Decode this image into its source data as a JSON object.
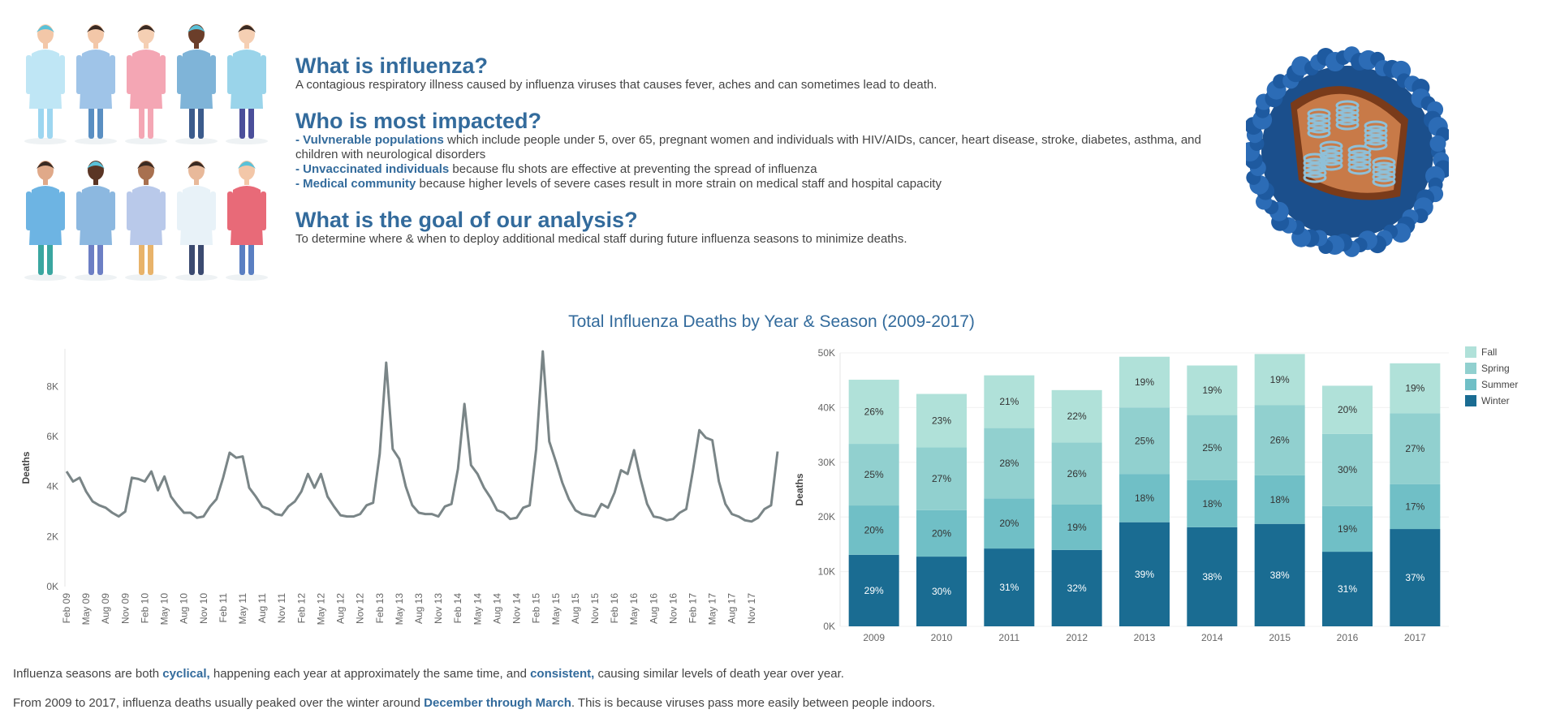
{
  "intro": {
    "q1_title": "What is influenza?",
    "q1_text": "A contagious respiratory illness caused by influenza viruses that causes fever, aches and can sometimes lead to death.",
    "q2_title": "Who is most impacted?",
    "bullets": [
      {
        "prefix": "- ",
        "highlight": "Vulvnerable populations",
        "text": " which include people under 5, over 65, pregnant women and individuals with HIV/AIDs, cancer, heart disease, stroke, diabetes, asthma, and children with neurological disorders"
      },
      {
        "prefix": "- ",
        "highlight": "Unvaccinated individuals",
        "text": " because flu shots are effective at preventing the spread of influenza"
      },
      {
        "prefix": "- ",
        "highlight": "Medical community",
        "text": " because higher levels of severe cases result in more strain on medical staff and hospital capacity"
      }
    ],
    "q3_title": "What is the goal of our analysis?",
    "q3_text": "To determine where & when to deploy additional medical staff during future influenza seasons to minimize deaths."
  },
  "dashboard_title": "Total Influenza Deaths by Year & Season (2009-2017)",
  "colors": {
    "title_blue": "#336b9c",
    "line": "#7a8587",
    "fall": "#b0e1d9",
    "spring": "#91d0cf",
    "summer": "#70bfc6",
    "winter": "#1a6c92"
  },
  "chart_data": [
    {
      "type": "line",
      "title": "",
      "xlabel": "",
      "ylabel": "Deaths",
      "ylim": [
        0,
        9500
      ],
      "ytick_labels": [
        "0K",
        "2K",
        "4K",
        "6K",
        "8K"
      ],
      "ytick_values": [
        0,
        2000,
        4000,
        6000,
        8000
      ],
      "xtick_labels": [
        "Feb 09",
        "May 09",
        "Aug 09",
        "Nov 09",
        "Feb 10",
        "May 10",
        "Aug 10",
        "Nov 10",
        "Feb 11",
        "May 11",
        "Aug 11",
        "Nov 11",
        "Feb 12",
        "May 12",
        "Aug 12",
        "Nov 12",
        "Feb 13",
        "May 13",
        "Aug 13",
        "Nov 13",
        "Feb 14",
        "May 14",
        "Aug 14",
        "Nov 14",
        "Feb 15",
        "May 15",
        "Aug 15",
        "Nov 15",
        "Feb 16",
        "May 16",
        "Aug 16",
        "Nov 16",
        "Feb 17",
        "May 17",
        "Aug 17",
        "Nov 17"
      ],
      "values": [
        4600,
        4200,
        4350,
        3800,
        3400,
        3250,
        3150,
        2950,
        2800,
        3000,
        4350,
        4300,
        4200,
        4600,
        3850,
        4400,
        3600,
        3250,
        2950,
        2950,
        2750,
        2800,
        3200,
        3500,
        4350,
        5350,
        5150,
        5200,
        3950,
        3600,
        3200,
        3100,
        2900,
        2850,
        3200,
        3400,
        3800,
        4500,
        3950,
        4500,
        3600,
        3200,
        2850,
        2800,
        2800,
        2900,
        3250,
        3350,
        5300,
        8950,
        5500,
        5100,
        4000,
        3250,
        2950,
        2900,
        2900,
        2800,
        3200,
        3300,
        4700,
        7300,
        4850,
        4500,
        3950,
        3550,
        3050,
        2950,
        2700,
        2750,
        3150,
        3250,
        5500,
        9400,
        5800,
        5000,
        4150,
        3500,
        3050,
        2900,
        2850,
        2800,
        3300,
        3150,
        3750,
        4650,
        4500,
        5450,
        4300,
        3300,
        2800,
        2750,
        2650,
        2700,
        2950,
        3100,
        4600,
        6250,
        5950,
        5850,
        4200,
        3300,
        2900,
        2800,
        2650,
        2600,
        2750,
        3100,
        3250,
        5400
      ]
    },
    {
      "type": "bar",
      "stacked": true,
      "title": "",
      "xlabel": "",
      "ylabel": "Deaths",
      "ylim": [
        0,
        50000
      ],
      "ytick_labels": [
        "0K",
        "10K",
        "20K",
        "30K",
        "40K",
        "50K"
      ],
      "ytick_values": [
        0,
        10000,
        20000,
        30000,
        40000,
        50000
      ],
      "categories": [
        "2009",
        "2010",
        "2011",
        "2012",
        "2013",
        "2014",
        "2015",
        "2016",
        "2017"
      ],
      "totals": [
        45100,
        42500,
        45900,
        43200,
        49300,
        47700,
        49800,
        44000,
        48100
      ],
      "legend_position": "top-right",
      "series": [
        {
          "name": "Winter",
          "color_key": "winter",
          "pct": [
            29,
            30,
            31,
            32,
            39,
            38,
            38,
            31,
            37
          ],
          "labels": [
            "29%",
            "30%",
            "31%",
            "32%",
            "39%",
            "38%",
            "38%",
            "31%",
            "37%"
          ]
        },
        {
          "name": "Summer",
          "color_key": "summer",
          "pct": [
            20,
            20,
            20,
            19,
            18,
            18,
            18,
            19,
            17
          ],
          "labels": [
            "20%",
            "20%",
            "20%",
            "19%",
            "18%",
            "18%",
            "18%",
            "19%",
            "17%"
          ]
        },
        {
          "name": "Spring",
          "color_key": "spring",
          "pct": [
            25,
            27,
            28,
            26,
            25,
            25,
            26,
            30,
            27
          ],
          "labels": [
            "25%",
            "27%",
            "28%",
            "26%",
            "25%",
            "25%",
            "26%",
            "30%",
            "27%"
          ]
        },
        {
          "name": "Fall",
          "color_key": "fall",
          "pct": [
            26,
            23,
            21,
            22,
            19,
            19,
            19,
            20,
            19
          ],
          "labels": [
            "26%",
            "23%",
            "21%",
            "22%",
            "19%",
            "19%",
            "19%",
            "20%",
            "19%"
          ]
        }
      ],
      "legend": [
        "Fall",
        "Spring",
        "Summer",
        "Winter"
      ]
    }
  ],
  "footer": {
    "line1_pre": "Influenza seasons are both ",
    "line1_hl1": "cyclical,",
    "line1_mid": " happening each year at approximately the same time, and ",
    "line1_hl2": "consistent,",
    "line1_post": " causing similar levels of death year over year.",
    "line2_pre": "From 2009 to 2017, influenza deaths usually peaked over the winter around ",
    "line2_hl": "December through March",
    "line2_post": ". This is because viruses pass more easily between people indoors."
  }
}
